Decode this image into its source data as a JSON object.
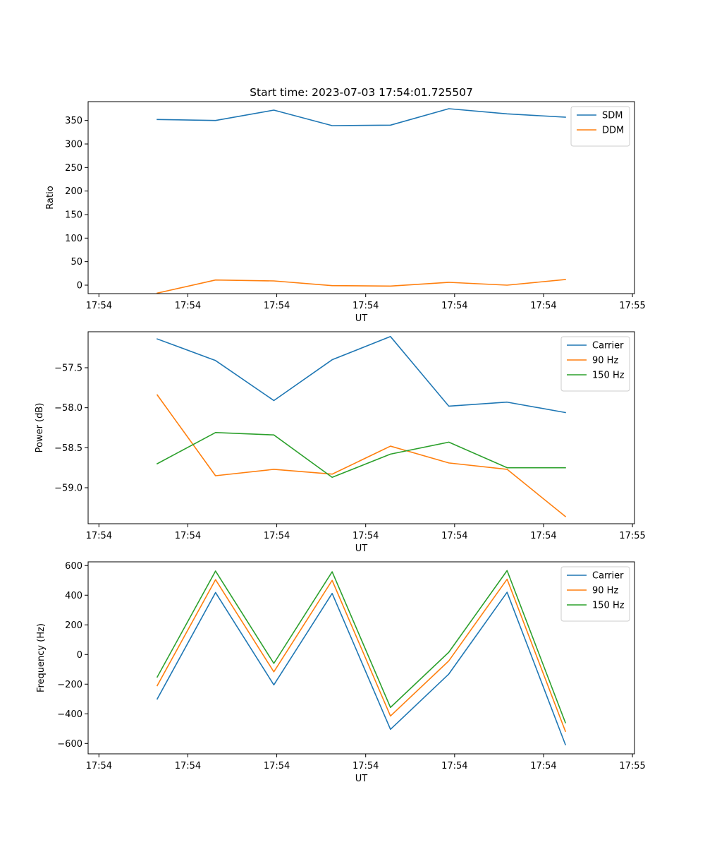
{
  "figure": {
    "title": "Start time: 2023-07-03 17:54:01.725507"
  },
  "chart_data": [
    {
      "type": "line",
      "title": "Start time: 2023-07-03 17:54:01.725507",
      "xlabel": "UT",
      "ylabel": "Ratio",
      "x": [
        1,
        2,
        3,
        4,
        5,
        6,
        7,
        8
      ],
      "x_tick_positions": [
        0,
        1.525,
        3.05,
        4.575,
        6.1,
        7.625,
        9.15
      ],
      "x_tick_labels": [
        "17:54",
        "17:54",
        "17:54",
        "17:54",
        "17:54",
        "17:54",
        "17:55"
      ],
      "xlim": [
        -0.185,
        9.185
      ],
      "ylim": [
        -18,
        390
      ],
      "y_ticks": [
        0,
        50,
        100,
        150,
        200,
        250,
        300,
        350
      ],
      "y_tick_labels": [
        "0",
        "50",
        "100",
        "150",
        "200",
        "250",
        "300",
        "350"
      ],
      "legend": "top-right",
      "grid": false,
      "series": [
        {
          "name": "SDM",
          "color": "#1f77b4",
          "values": [
            352,
            350,
            372,
            339,
            340,
            375,
            364,
            357
          ]
        },
        {
          "name": "DDM",
          "color": "#ff7f0e",
          "values": [
            -17,
            11,
            9,
            -1,
            -2,
            6,
            0,
            12
          ]
        }
      ]
    },
    {
      "type": "line",
      "title": "",
      "xlabel": "UT",
      "ylabel": "Power (dB)",
      "x": [
        1,
        2,
        3,
        4,
        5,
        6,
        7,
        8
      ],
      "x_tick_positions": [
        0,
        1.525,
        3.05,
        4.575,
        6.1,
        7.625,
        9.15
      ],
      "x_tick_labels": [
        "17:54",
        "17:54",
        "17:54",
        "17:54",
        "17:54",
        "17:54",
        "17:55"
      ],
      "xlim": [
        -0.185,
        9.185
      ],
      "ylim": [
        -59.45,
        -57.05
      ],
      "y_ticks": [
        -59.0,
        -58.5,
        -58.0,
        -57.5
      ],
      "y_tick_labels": [
        "−59.0",
        "−58.5",
        "−58.0",
        "−57.5"
      ],
      "legend": "top-right",
      "grid": false,
      "series": [
        {
          "name": "Carrier",
          "color": "#1f77b4",
          "values": [
            -57.14,
            -57.41,
            -57.91,
            -57.4,
            -57.11,
            -57.98,
            -57.93,
            -58.06
          ]
        },
        {
          "name": "90 Hz",
          "color": "#ff7f0e",
          "values": [
            -57.84,
            -58.85,
            -58.77,
            -58.83,
            -58.48,
            -58.69,
            -58.77,
            -59.36
          ]
        },
        {
          "name": "150 Hz",
          "color": "#2ca02c",
          "values": [
            -58.7,
            -58.31,
            -58.34,
            -58.87,
            -58.58,
            -58.43,
            -58.75,
            -58.75
          ]
        }
      ]
    },
    {
      "type": "line",
      "title": "",
      "xlabel": "UT",
      "ylabel": "Frequency (Hz)",
      "x": [
        1,
        2,
        3,
        4,
        5,
        6,
        7,
        8
      ],
      "x_tick_positions": [
        0,
        1.525,
        3.05,
        4.575,
        6.1,
        7.625,
        9.15
      ],
      "x_tick_labels": [
        "17:54",
        "17:54",
        "17:54",
        "17:54",
        "17:54",
        "17:54",
        "17:55"
      ],
      "xlim": [
        -0.185,
        9.185
      ],
      "ylim": [
        -670,
        625
      ],
      "y_ticks": [
        -600,
        -400,
        -200,
        0,
        200,
        400,
        600
      ],
      "y_tick_labels": [
        "−600",
        "−400",
        "−200",
        "0",
        "200",
        "400",
        "600"
      ],
      "legend": "top-right",
      "grid": false,
      "series": [
        {
          "name": "Carrier",
          "color": "#1f77b4",
          "values": [
            -300,
            418,
            -205,
            412,
            -505,
            -132,
            420,
            -608
          ]
        },
        {
          "name": "90 Hz",
          "color": "#ff7f0e",
          "values": [
            -210,
            505,
            -117,
            500,
            -415,
            -43,
            508,
            -518
          ]
        },
        {
          "name": "150 Hz",
          "color": "#2ca02c",
          "values": [
            -152,
            563,
            -60,
            558,
            -357,
            15,
            566,
            -460
          ]
        }
      ]
    }
  ]
}
